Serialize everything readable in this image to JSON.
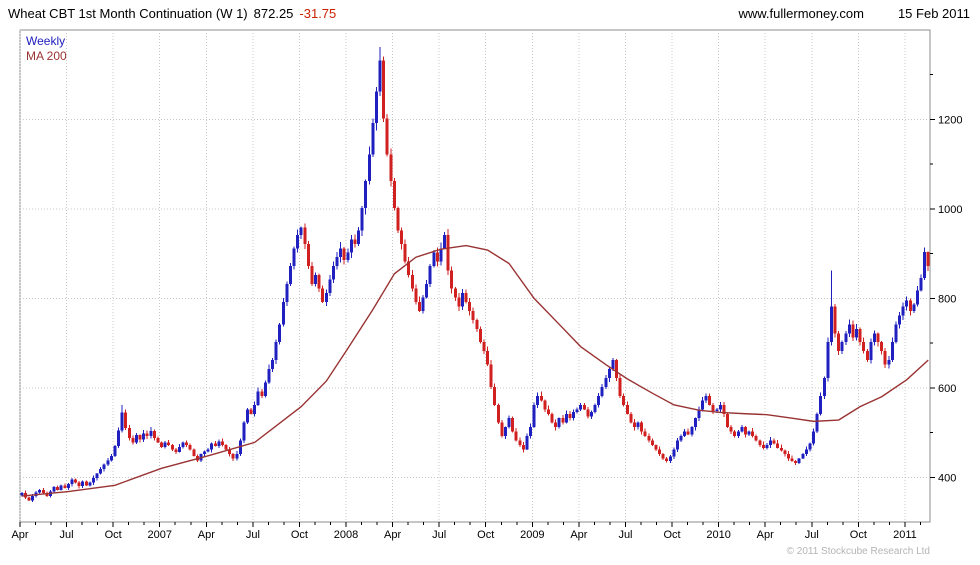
{
  "header": {
    "title": "Wheat CBT 1st Month Continuation (W 1)",
    "last_price": "872.25",
    "change": "-31.75",
    "website": "www.fullermoney.com",
    "date": "15 Feb 2011"
  },
  "footer": {
    "copyright": "© 2011 Stockcube Research Ltd"
  },
  "chart_data": {
    "type": "candlestick",
    "title": "Wheat CBT 1st Month Continuation (W 1)",
    "interval": "Weekly",
    "overlay": "MA 200",
    "legend": [
      {
        "label": "Weekly",
        "color": "#2020c0"
      },
      {
        "label": "MA 200",
        "color": "#993333"
      }
    ],
    "ylim": [
      300,
      1400
    ],
    "yticks": [
      400,
      600,
      800,
      1000,
      1200
    ],
    "xticks": [
      {
        "week": 0,
        "label": "Apr"
      },
      {
        "week": 13,
        "label": "Jul"
      },
      {
        "week": 26,
        "label": "Oct"
      },
      {
        "week": 39,
        "label": "2007"
      },
      {
        "week": 52,
        "label": "Apr"
      },
      {
        "week": 65,
        "label": "Jul"
      },
      {
        "week": 78,
        "label": "Oct"
      },
      {
        "week": 91,
        "label": "2008"
      },
      {
        "week": 104,
        "label": "Apr"
      },
      {
        "week": 117,
        "label": "Jul"
      },
      {
        "week": 130,
        "label": "Oct"
      },
      {
        "week": 143,
        "label": "2009"
      },
      {
        "week": 156,
        "label": "Apr"
      },
      {
        "week": 169,
        "label": "Jul"
      },
      {
        "week": 182,
        "label": "Oct"
      },
      {
        "week": 195,
        "label": "2010"
      },
      {
        "week": 208,
        "label": "Apr"
      },
      {
        "week": 221,
        "label": "Jul"
      },
      {
        "week": 234,
        "label": "Oct"
      },
      {
        "week": 247,
        "label": "2011"
      }
    ],
    "weekly_closes": [
      365,
      355,
      348,
      358,
      366,
      372,
      365,
      358,
      368,
      378,
      372,
      382,
      376,
      385,
      395,
      388,
      380,
      390,
      382,
      388,
      398,
      408,
      418,
      428,
      438,
      448,
      470,
      505,
      545,
      510,
      488,
      478,
      494,
      484,
      498,
      492,
      504,
      488,
      478,
      468,
      478,
      472,
      462,
      457,
      468,
      478,
      472,
      462,
      448,
      438,
      452,
      458,
      462,
      476,
      470,
      480,
      472,
      462,
      452,
      442,
      452,
      482,
      522,
      552,
      542,
      562,
      592,
      582,
      612,
      642,
      662,
      702,
      742,
      792,
      832,
      872,
      912,
      942,
      958,
      922,
      872,
      832,
      852,
      822,
      792,
      812,
      842,
      872,
      892,
      912,
      886,
      902,
      932,
      922,
      952,
      1002,
      1062,
      1122,
      1192,
      1262,
      1332,
      1202,
      1122,
      1062,
      1002,
      952,
      922,
      882,
      852,
      822,
      792,
      772,
      802,
      832,
      872,
      902,
      882,
      912,
      942,
      862,
      822,
      802,
      782,
      812,
      792,
      772,
      752,
      732,
      702,
      682,
      652,
      602,
      562,
      522,
      492,
      512,
      532,
      502,
      482,
      472,
      462,
      492,
      512,
      562,
      582,
      572,
      552,
      542,
      522,
      512,
      532,
      522,
      542,
      532,
      546,
      552,
      562,
      552,
      536,
      546,
      562,
      582,
      602,
      622,
      642,
      662,
      622,
      582,
      562,
      542,
      522,
      512,
      522,
      502,
      492,
      482,
      472,
      462,
      452,
      442,
      436,
      446,
      462,
      482,
      492,
      502,
      496,
      512,
      532,
      552,
      572,
      582,
      562,
      548,
      552,
      562,
      542,
      512,
      502,
      492,
      502,
      512,
      496,
      502,
      492,
      482,
      472,
      466,
      472,
      482,
      476,
      466,
      460,
      452,
      442,
      436,
      432,
      442,
      452,
      462,
      476,
      502,
      542,
      582,
      622,
      702,
      782,
      722,
      682,
      702,
      722,
      742,
      712,
      732,
      702,
      682,
      662,
      702,
      722,
      702,
      682,
      652,
      662,
      702,
      742,
      762,
      782,
      795,
      772,
      786,
      818,
      845,
      904,
      872.25
    ],
    "wick_overrides": {
      "28": 562,
      "100": 1362,
      "226": 862,
      "253": 905
    },
    "ma200": [
      [
        0,
        358
      ],
      [
        13,
        368
      ],
      [
        26,
        382
      ],
      [
        39,
        420
      ],
      [
        52,
        448
      ],
      [
        65,
        478
      ],
      [
        78,
        558
      ],
      [
        85,
        615
      ],
      [
        91,
        688
      ],
      [
        98,
        775
      ],
      [
        104,
        855
      ],
      [
        110,
        892
      ],
      [
        117,
        910
      ],
      [
        124,
        918
      ],
      [
        130,
        908
      ],
      [
        136,
        878
      ],
      [
        143,
        800
      ],
      [
        150,
        742
      ],
      [
        156,
        692
      ],
      [
        163,
        652
      ],
      [
        169,
        620
      ],
      [
        176,
        588
      ],
      [
        182,
        562
      ],
      [
        189,
        550
      ],
      [
        195,
        545
      ],
      [
        202,
        542
      ],
      [
        208,
        540
      ],
      [
        215,
        532
      ],
      [
        221,
        525
      ],
      [
        228,
        528
      ],
      [
        234,
        558
      ],
      [
        240,
        580
      ],
      [
        247,
        618
      ],
      [
        253,
        662
      ]
    ],
    "colors": {
      "up": "#2020c0",
      "down": "#d02020",
      "ma": "#993333",
      "grid": "#c9c9c9",
      "axis": "#8c8c8c",
      "change_text": "#cc2200",
      "copyright_text": "#b4b4b4"
    }
  }
}
